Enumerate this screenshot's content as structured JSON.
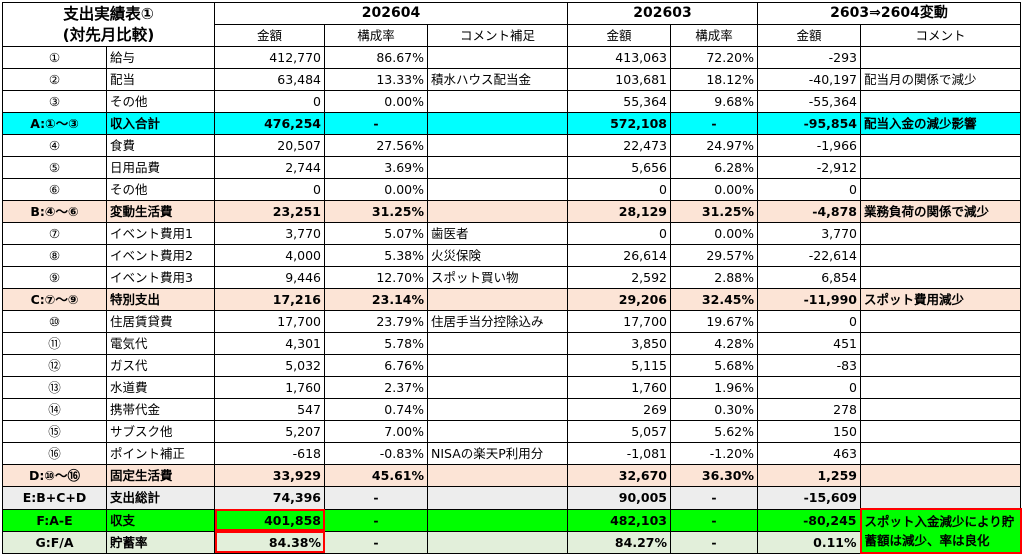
{
  "title": {
    "line1": "支出実績表①",
    "line2": "(対先月比較)"
  },
  "periods": {
    "current": "202604",
    "previous": "202603",
    "diff": "2603⇒2604変動"
  },
  "col_headers": {
    "amount": "金額",
    "ratio": "構成率",
    "comment_note": "コメント補足",
    "amount2": "金額",
    "ratio2": "構成率",
    "amount3": "金額",
    "comment": "コメント"
  },
  "rows": [
    {
      "no": "①",
      "item": "給与",
      "cur": "412,770",
      "cur_ratio": "86.67%",
      "note": "",
      "prev": "413,063",
      "prev_ratio": "72.20%",
      "diff": "-293",
      "comment": ""
    },
    {
      "no": "②",
      "item": "配当",
      "cur": "63,484",
      "cur_ratio": "13.33%",
      "note": "積水ハウス配当金",
      "prev": "103,681",
      "prev_ratio": "18.12%",
      "diff": "-40,197",
      "comment": "配当月の関係で減少"
    },
    {
      "no": "③",
      "item": "その他",
      "cur": "0",
      "cur_ratio": "0.00%",
      "note": "",
      "prev": "55,364",
      "prev_ratio": "9.68%",
      "diff": "-55,364",
      "comment": ""
    },
    {
      "no": "A:①～③",
      "item": "収入合計",
      "cur": "476,254",
      "cur_ratio": "-",
      "note": "",
      "prev": "572,108",
      "prev_ratio": "-",
      "diff": "-95,854",
      "comment": "配当入金の減少影響"
    },
    {
      "no": "④",
      "item": "食費",
      "cur": "20,507",
      "cur_ratio": "27.56%",
      "note": "",
      "prev": "22,473",
      "prev_ratio": "24.97%",
      "diff": "-1,966",
      "comment": ""
    },
    {
      "no": "⑤",
      "item": "日用品費",
      "cur": "2,744",
      "cur_ratio": "3.69%",
      "note": "",
      "prev": "5,656",
      "prev_ratio": "6.28%",
      "diff": "-2,912",
      "comment": ""
    },
    {
      "no": "⑥",
      "item": "その他",
      "cur": "0",
      "cur_ratio": "0.00%",
      "note": "",
      "prev": "0",
      "prev_ratio": "0.00%",
      "diff": "0",
      "comment": ""
    },
    {
      "no": "B:④～⑥",
      "item": "変動生活費",
      "cur": "23,251",
      "cur_ratio": "31.25%",
      "note": "",
      "prev": "28,129",
      "prev_ratio": "31.25%",
      "diff": "-4,878",
      "comment": "業務負荷の関係で減少"
    },
    {
      "no": "⑦",
      "item": "イベント費用1",
      "cur": "3,770",
      "cur_ratio": "5.07%",
      "note": "歯医者",
      "prev": "0",
      "prev_ratio": "0.00%",
      "diff": "3,770",
      "comment": ""
    },
    {
      "no": "⑧",
      "item": "イベント費用2",
      "cur": "4,000",
      "cur_ratio": "5.38%",
      "note": "火災保険",
      "prev": "26,614",
      "prev_ratio": "29.57%",
      "diff": "-22,614",
      "comment": ""
    },
    {
      "no": "⑨",
      "item": "イベント費用3",
      "cur": "9,446",
      "cur_ratio": "12.70%",
      "note": "スポット買い物",
      "prev": "2,592",
      "prev_ratio": "2.88%",
      "diff": "6,854",
      "comment": ""
    },
    {
      "no": "C:⑦～⑨",
      "item": "特別支出",
      "cur": "17,216",
      "cur_ratio": "23.14%",
      "note": "",
      "prev": "29,206",
      "prev_ratio": "32.45%",
      "diff": "-11,990",
      "comment": "スポット費用減少"
    },
    {
      "no": "⑩",
      "item": "住居賃貸費",
      "cur": "17,700",
      "cur_ratio": "23.79%",
      "note": "住居手当分控除込み",
      "prev": "17,700",
      "prev_ratio": "19.67%",
      "diff": "0",
      "comment": ""
    },
    {
      "no": "⑪",
      "item": "電気代",
      "cur": "4,301",
      "cur_ratio": "5.78%",
      "note": "",
      "prev": "3,850",
      "prev_ratio": "4.28%",
      "diff": "451",
      "comment": ""
    },
    {
      "no": "⑫",
      "item": "ガス代",
      "cur": "5,032",
      "cur_ratio": "6.76%",
      "note": "",
      "prev": "5,115",
      "prev_ratio": "5.68%",
      "diff": "-83",
      "comment": ""
    },
    {
      "no": "⑬",
      "item": "水道費",
      "cur": "1,760",
      "cur_ratio": "2.37%",
      "note": "",
      "prev": "1,760",
      "prev_ratio": "1.96%",
      "diff": "0",
      "comment": ""
    },
    {
      "no": "⑭",
      "item": "携帯代金",
      "cur": "547",
      "cur_ratio": "0.74%",
      "note": "",
      "prev": "269",
      "prev_ratio": "0.30%",
      "diff": "278",
      "comment": ""
    },
    {
      "no": "⑮",
      "item": "サブスク他",
      "cur": "5,207",
      "cur_ratio": "7.00%",
      "note": "",
      "prev": "5,057",
      "prev_ratio": "5.62%",
      "diff": "150",
      "comment": ""
    },
    {
      "no": "⑯",
      "item": "ポイント補正",
      "cur": "-618",
      "cur_ratio": "-0.83%",
      "note": "NISAの楽天P利用分",
      "prev": "-1,081",
      "prev_ratio": "-1.20%",
      "diff": "463",
      "comment": ""
    },
    {
      "no": "D:⑩～⑯",
      "item": "固定生活費",
      "cur": "33,929",
      "cur_ratio": "45.61%",
      "note": "",
      "prev": "32,670",
      "prev_ratio": "36.30%",
      "diff": "1,259",
      "comment": ""
    },
    {
      "no": "E:B+C+D",
      "item": "支出総計",
      "cur": "74,396",
      "cur_ratio": "-",
      "note": "",
      "prev": "90,005",
      "prev_ratio": "-",
      "diff": "-15,609",
      "comment": ""
    },
    {
      "no": "F:A-E",
      "item": "収支",
      "cur": "401,858",
      "cur_ratio": "-",
      "note": "",
      "prev": "482,103",
      "prev_ratio": "-",
      "diff": "-80,245",
      "comment": ""
    },
    {
      "no": "G:F/A",
      "item": "貯蓄率",
      "cur": "84.38%",
      "cur_ratio": "-",
      "note": "",
      "prev": "84.27%",
      "prev_ratio": "-",
      "diff": "0.11%",
      "comment": ""
    }
  ],
  "final_comment": "スポット入金減少により貯蓄額は減少、率は良化",
  "colors": {
    "income_total": "#00ffff",
    "subtotal": "#fce4d6",
    "grand_total": "#ededed",
    "balance": "#00ff00",
    "savings": "#e2efda",
    "highlight": "#ff0000"
  }
}
